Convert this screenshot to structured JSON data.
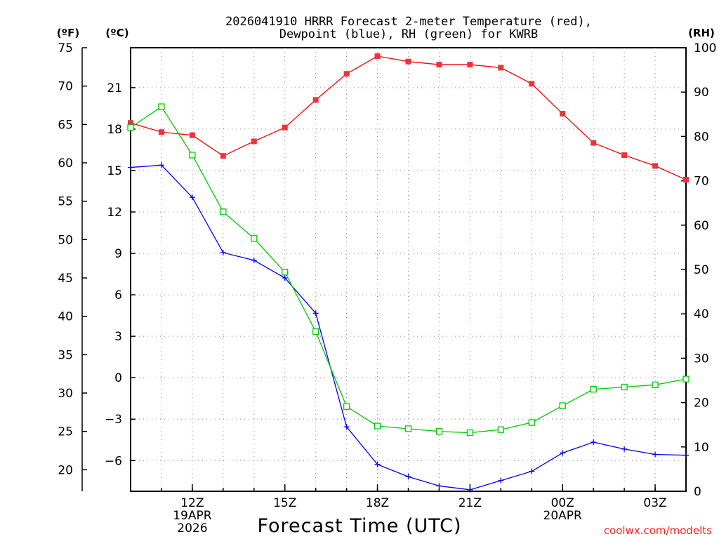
{
  "chart_data": {
    "type": "line",
    "title_line1": "2026041910 HRRR Forecast 2-meter Temperature (red),",
    "title_line2": "Dewpoint (blue), RH (green) for KWRB",
    "xlabel": "Forecast Time (UTC)",
    "left_unit_f": "(ºF)",
    "left_unit_c": "(ºC)",
    "right_unit": "(RH)",
    "credit": "coolwx.com/modelts",
    "x_ticks": [
      {
        "hour": 12,
        "lines": [
          "12Z",
          "19APR",
          "2026"
        ]
      },
      {
        "hour": 15,
        "lines": [
          "15Z"
        ]
      },
      {
        "hour": 18,
        "lines": [
          "18Z"
        ]
      },
      {
        "hour": 21,
        "lines": [
          "21Z"
        ]
      },
      {
        "hour": 24,
        "lines": [
          "00Z",
          "20APR"
        ]
      },
      {
        "hour": 27,
        "lines": [
          "03Z"
        ]
      }
    ],
    "x_range": [
      10,
      28
    ],
    "f_ticks": [
      20,
      25,
      30,
      35,
      40,
      45,
      50,
      55,
      60,
      65,
      70,
      75
    ],
    "f_range": [
      17.2,
      75
    ],
    "c_ticks": [
      -6,
      -3,
      0,
      3,
      6,
      9,
      12,
      15,
      18,
      21
    ],
    "rh_ticks": [
      0,
      10,
      20,
      30,
      40,
      50,
      60,
      70,
      80,
      90,
      100
    ],
    "rh_range": [
      0,
      100
    ],
    "x": [
      10,
      11,
      12,
      13,
      14,
      15,
      16,
      17,
      18,
      19,
      20,
      21,
      22,
      23,
      24,
      25,
      26,
      27,
      28
    ],
    "series": [
      {
        "name": "Temperature",
        "unit": "F",
        "color": "#ff0000",
        "marker": "square-filled",
        "values": [
          65.2,
          64.0,
          63.6,
          60.9,
          62.8,
          64.6,
          68.2,
          71.6,
          73.9,
          73.2,
          72.8,
          72.8,
          72.4,
          70.3,
          66.4,
          62.6,
          61.0,
          59.6,
          57.8
        ]
      },
      {
        "name": "Dewpoint",
        "unit": "F",
        "color": "#0000ff",
        "marker": "plus",
        "values": [
          59.4,
          59.7,
          55.5,
          48.3,
          47.3,
          45.0,
          40.4,
          25.6,
          20.7,
          19.1,
          17.9,
          17.4,
          18.6,
          19.8,
          22.2,
          23.6,
          22.7,
          22.0,
          21.9
        ]
      },
      {
        "name": "RH",
        "unit": "%",
        "color": "#00cc00",
        "marker": "square-open",
        "values": [
          82,
          86.7,
          75.8,
          63,
          57,
          49.4,
          36,
          19.1,
          14.7,
          14.1,
          13.5,
          13.2,
          13.9,
          15.5,
          19.3,
          23,
          23.5,
          24,
          25.3
        ]
      }
    ]
  },
  "colors": {
    "axis": "#000000",
    "grid": "#888888",
    "credit": "#ff2020"
  }
}
